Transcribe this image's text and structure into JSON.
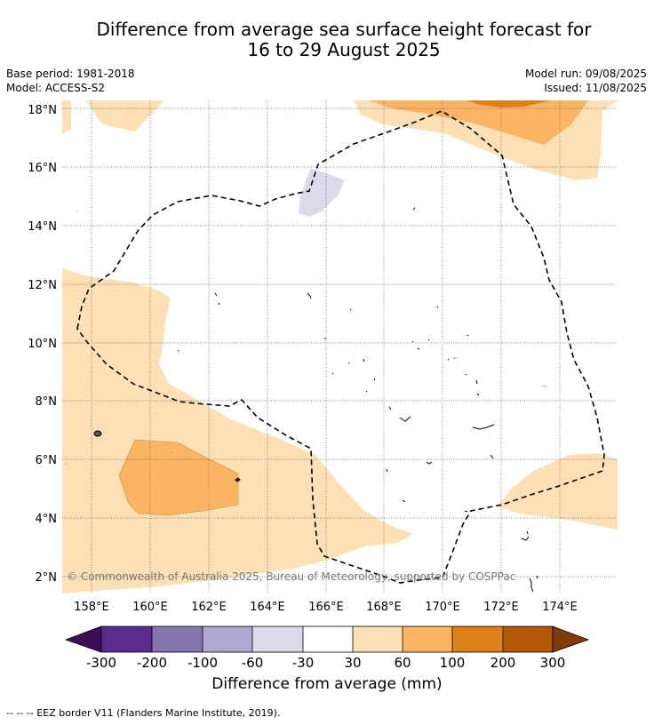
{
  "title": {
    "line1": "Difference from average sea surface height forecast for",
    "line2": "16 to 29 August 2025"
  },
  "meta": {
    "base_period": "Base period: 1981-2018",
    "model": "Model: ACCESS-S2",
    "model_run": "Model run: 09/08/2025",
    "issued": "Issued: 11/08/2025"
  },
  "map": {
    "lon_range": [
      157.0,
      176.0
    ],
    "lat_range": [
      1.4,
      18.3
    ],
    "lon_ticks": [
      "158°E",
      "160°E",
      "162°E",
      "164°E",
      "166°E",
      "168°E",
      "170°E",
      "172°E",
      "174°E"
    ],
    "lat_ticks": [
      "2°N",
      "4°N",
      "6°N",
      "8°N",
      "10°N",
      "12°N",
      "14°N",
      "16°N",
      "18°N"
    ],
    "copyright": "© Commonwealth of Australia 2025, Bureau of Meteorology, supported by COSPPac",
    "grid": true
  },
  "colorbar": {
    "title": "Difference from average (mm)",
    "tick_labels": [
      "-300",
      "-200",
      "-100",
      "-60",
      "-30",
      "30",
      "60",
      "100",
      "200",
      "300"
    ],
    "colors": [
      "#3d0e56",
      "#5c2a8c",
      "#8474b0",
      "#b0a8d2",
      "#dadaeb",
      "#ffffff",
      "#fde0b6",
      "#fab462",
      "#e08118",
      "#b35807",
      "#7f3b08"
    ]
  },
  "legend": {
    "eez_text": "--  --  -- EEZ border V11 (Flanders Marine Institute, 2019)."
  }
}
